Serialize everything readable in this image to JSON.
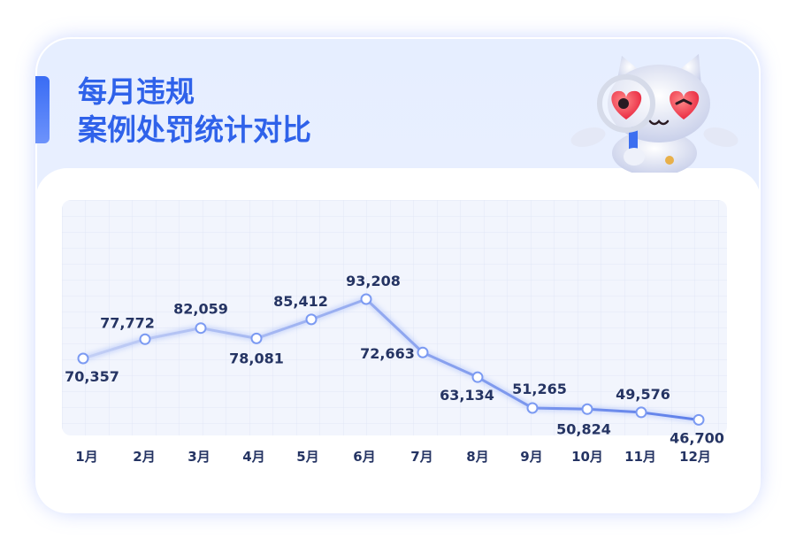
{
  "title_line1": "每月违规",
  "title_line2": "案例处罚统计对比",
  "colors": {
    "accent": "#2f62ea",
    "line": "#7b9af2",
    "label": "#253463"
  },
  "mascot": "cat-mascot-with-heart-glasses-and-magnifier",
  "chart_data": {
    "type": "line",
    "categories": [
      "1月",
      "2月",
      "3月",
      "4月",
      "5月",
      "6月",
      "7月",
      "8月",
      "9月",
      "10月",
      "11月",
      "12月"
    ],
    "values": [
      70357,
      77772,
      82059,
      78081,
      85412,
      93208,
      72663,
      63134,
      51265,
      50824,
      49576,
      46700
    ],
    "value_labels": [
      "70,357",
      "77,772",
      "82,059",
      "78,081",
      "85,412",
      "93,208",
      "72,663",
      "63,134",
      "51,265",
      "50,824",
      "49,576",
      "46,700"
    ],
    "title": "每月违规 案例处罚统计对比",
    "xlabel": "",
    "ylabel": "",
    "grid": true,
    "legend": "none"
  }
}
